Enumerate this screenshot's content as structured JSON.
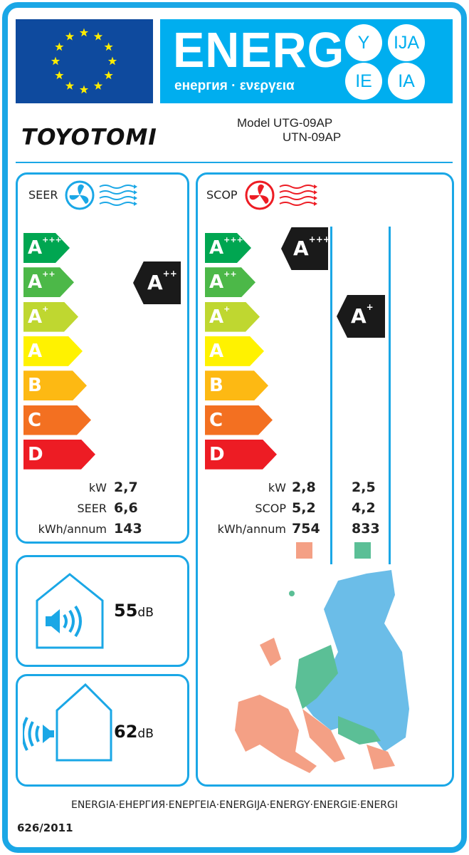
{
  "header": {
    "energy_title": "ENERG",
    "energy_subtitle": "енергия · ενεργεια",
    "suffixes": [
      "Y",
      "IJA",
      "IE",
      "IA"
    ]
  },
  "brand": {
    "logo": "TOYOTOMI"
  },
  "model": {
    "label": "Model",
    "outdoor": "UTG-09AP",
    "indoor": "UTN-09AP"
  },
  "scale": [
    {
      "letter": "A",
      "plus": "+++",
      "color": "#00a651"
    },
    {
      "letter": "A",
      "plus": "++",
      "color": "#4cb848"
    },
    {
      "letter": "A",
      "plus": "+",
      "color": "#bfd730"
    },
    {
      "letter": "A",
      "plus": "",
      "color": "#fff200"
    },
    {
      "letter": "B",
      "plus": "",
      "color": "#fdb913"
    },
    {
      "letter": "C",
      "plus": "",
      "color": "#f37021"
    },
    {
      "letter": "D",
      "plus": "",
      "color": "#ed1c24"
    }
  ],
  "seer": {
    "title": "SEER",
    "class_letter": "A",
    "class_plus": "++",
    "fan_color": "#1aa7e6",
    "rows": [
      {
        "label": "kW",
        "value": "2,7"
      },
      {
        "label": "SEER",
        "value": "6,6"
      },
      {
        "label": "kWh/annum",
        "value": "143"
      }
    ]
  },
  "scop": {
    "title": "SCOP",
    "fan_color": "#ed1c24",
    "zones": [
      {
        "class_letter": "A",
        "class_plus": "+++",
        "color": "#f4a085",
        "kw": "2,8",
        "scop": "5,2",
        "kwh": "754"
      },
      {
        "class_letter": "A",
        "class_plus": "+",
        "color": "#5bbf96",
        "kw": "2,5",
        "scop": "4,2",
        "kwh": "833"
      }
    ],
    "row_labels": [
      "kW",
      "SCOP",
      "kWh/annum"
    ],
    "map_third_color": "#6bbde8"
  },
  "noise": {
    "indoor": {
      "value": "55",
      "unit": "dB"
    },
    "outdoor": {
      "value": "62",
      "unit": "dB"
    }
  },
  "footer": {
    "languages": "ENERGIA·ЕНЕРГИЯ·ENEPΓEIA·ENERGIJA·ENERGY·ENERGIE·ENERGI",
    "regulation": "626/2011"
  }
}
